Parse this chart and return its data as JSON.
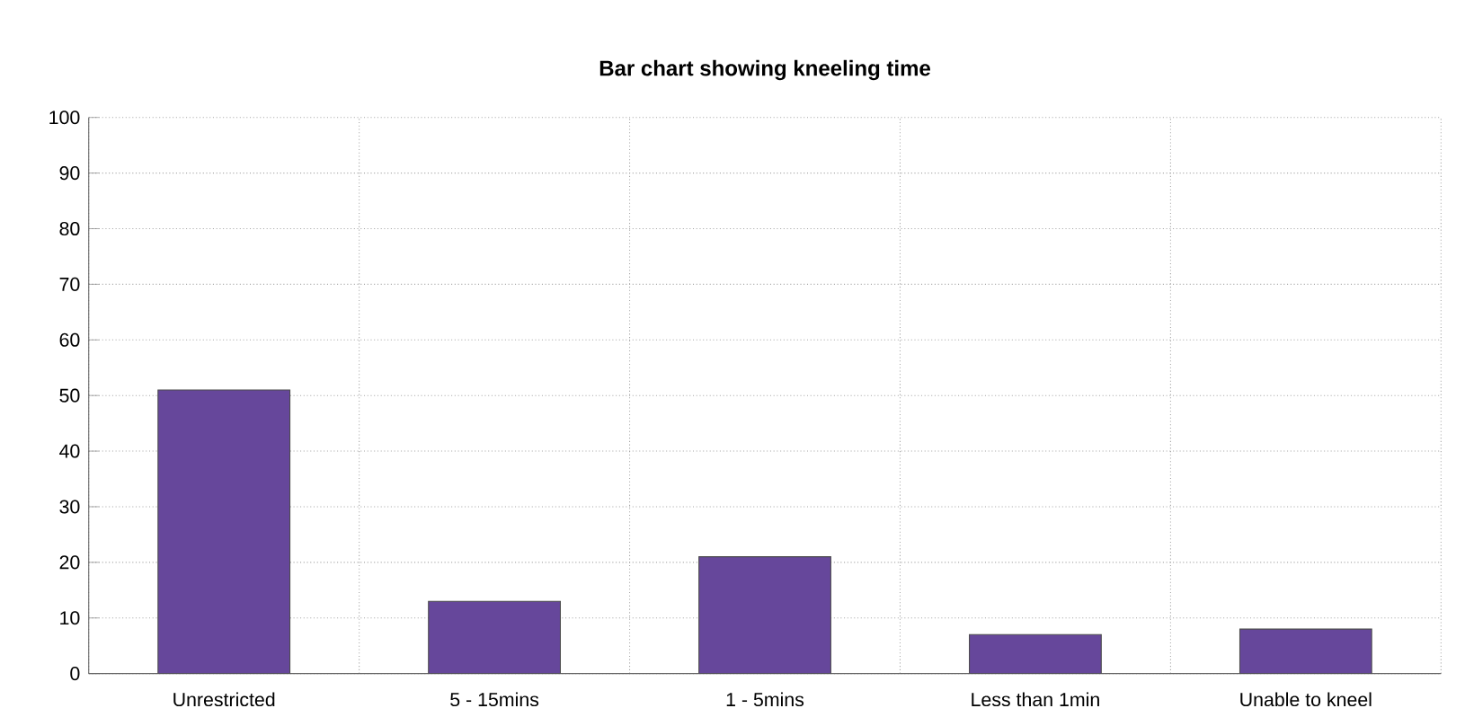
{
  "chart_data": {
    "type": "bar",
    "title": "Bar chart showing kneeling time",
    "categories": [
      "Unrestricted",
      "5 - 15mins",
      "1 - 5mins",
      "Less than 1min",
      "Unable to kneel"
    ],
    "values": [
      51,
      13,
      21,
      7,
      8
    ],
    "color": "#66479b",
    "ylim": [
      0,
      100
    ],
    "yticks": [
      0,
      10,
      20,
      30,
      40,
      50,
      60,
      70,
      80,
      90,
      100
    ],
    "grid": true
  }
}
